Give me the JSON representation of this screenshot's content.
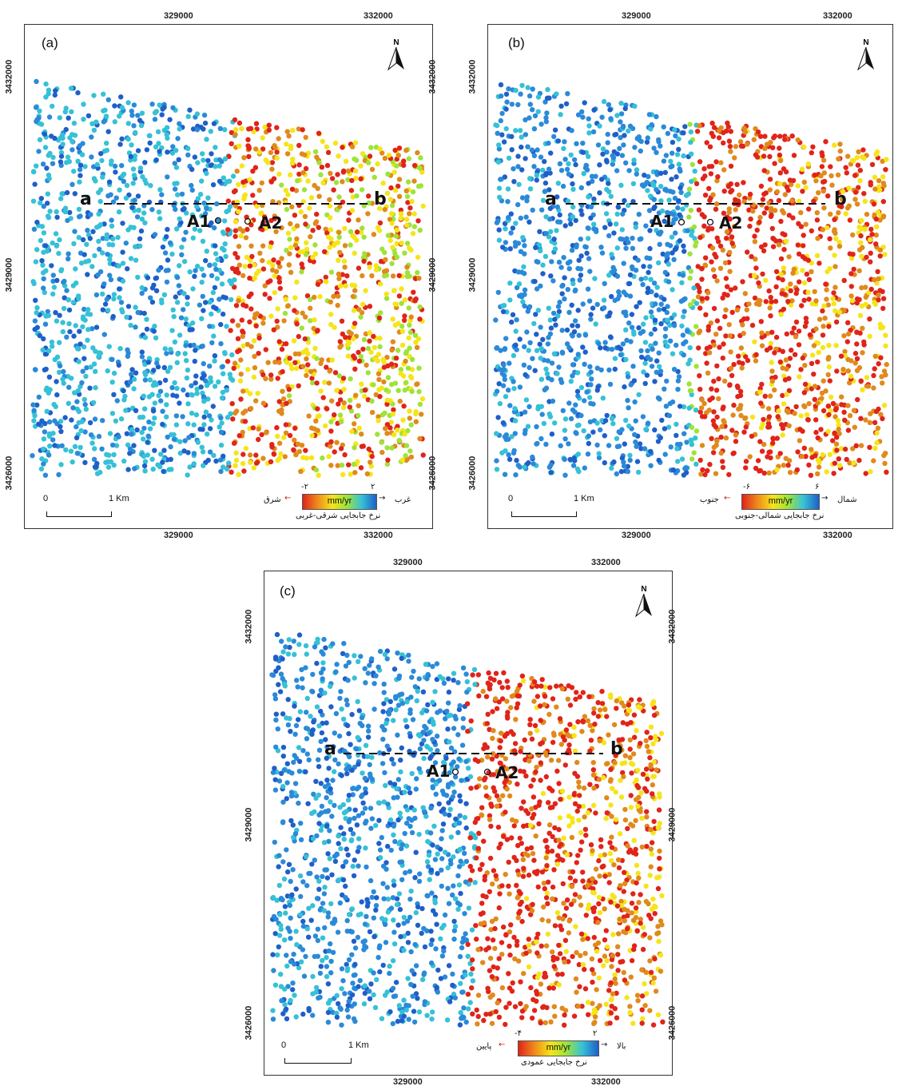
{
  "panels": [
    {
      "id": "a",
      "label": "(a)",
      "x_ticks": [
        "329000",
        "332000"
      ],
      "y_ticks": [
        "3432000",
        "3429000",
        "3426000"
      ],
      "profile": {
        "start": "a",
        "end": "b"
      },
      "points": [
        "A1",
        "A2"
      ],
      "north": "N",
      "scale": {
        "zero": "0",
        "end": "1 Km"
      },
      "legend": {
        "min": "-۲",
        "max": "۲",
        "unit": "mm/yr",
        "left": "شرق",
        "right": "غرب",
        "title": "نرخ جابجایی شرقی-غربی"
      }
    },
    {
      "id": "b",
      "label": "(b)",
      "x_ticks": [
        "329000",
        "332000"
      ],
      "y_ticks": [
        "3432000",
        "3429000",
        "3426000"
      ],
      "profile": {
        "start": "a",
        "end": "b"
      },
      "points": [
        "A1",
        "A2"
      ],
      "north": "N",
      "scale": {
        "zero": "0",
        "end": "1 Km"
      },
      "legend": {
        "min": "-۶",
        "max": "۶",
        "unit": "mm/yr",
        "left": "جنوب",
        "right": "شمال",
        "title": "نرخ جابجایی شمالی-جنوبی"
      }
    },
    {
      "id": "c",
      "label": "(c)",
      "x_ticks": [
        "329000",
        "332000"
      ],
      "y_ticks": [
        "3432000",
        "3429000",
        "3426000"
      ],
      "profile": {
        "start": "a",
        "end": "b"
      },
      "points": [
        "A1",
        "A2"
      ],
      "north": "N",
      "scale": {
        "zero": "0",
        "end": "1 Km"
      },
      "legend": {
        "min": "-۴",
        "max": "۲",
        "unit": "mm/yr",
        "left": "پایین",
        "right": "بالا",
        "title": "نرخ جابجایی عمودی"
      }
    }
  ],
  "colors": {
    "blue_dark": "#1f5fc8",
    "blue": "#2b8ad8",
    "cyan": "#36c1d6",
    "green": "#9ee33a",
    "yellow": "#f5e51a",
    "orange": "#e08a1c",
    "red": "#e0241a"
  }
}
